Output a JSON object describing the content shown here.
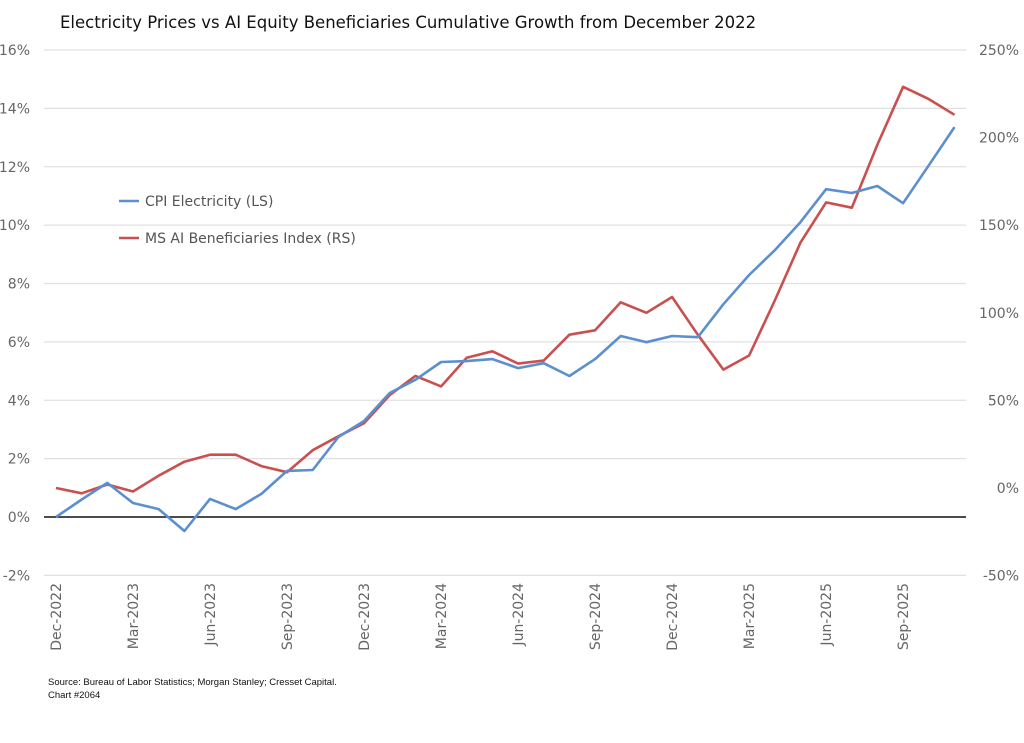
{
  "chart_data": {
    "type": "line",
    "title": "Electricity Prices vs AI Equity Beneficiaries Cumulative Growth from December 2022",
    "x": [
      "Dec-2022",
      "Jan-2023",
      "Feb-2023",
      "Mar-2023",
      "Apr-2023",
      "May-2023",
      "Jun-2023",
      "Jul-2023",
      "Aug-2023",
      "Sep-2023",
      "Oct-2023",
      "Nov-2023",
      "Dec-2023",
      "Jan-2024",
      "Feb-2024",
      "Mar-2024",
      "Apr-2024",
      "May-2024",
      "Jun-2024",
      "Jul-2024",
      "Aug-2024",
      "Sep-2024",
      "Oct-2024",
      "Nov-2024",
      "Dec-2024",
      "Jan-2025",
      "Feb-2025",
      "Mar-2025",
      "Apr-2025",
      "May-2025",
      "Jun-2025",
      "Jul-2025",
      "Aug-2025",
      "Sep-2025",
      "Oct-2025",
      "Nov-2025"
    ],
    "x_tick_labels": [
      "Dec-2022",
      "Mar-2023",
      "Jun-2023",
      "Sep-2023",
      "Dec-2023",
      "Mar-2024",
      "Jun-2024",
      "Sep-2024",
      "Dec-2024",
      "Mar-2025",
      "Jun-2025",
      "Sep-2025"
    ],
    "y_left": {
      "ticks": [
        "-2%",
        "0%",
        "2%",
        "4%",
        "6%",
        "8%",
        "10%",
        "12%",
        "14%",
        "16%"
      ],
      "range": [
        -2,
        16
      ]
    },
    "y_right": {
      "ticks": [
        "-50%",
        "0%",
        "50%",
        "100%",
        "150%",
        "200%",
        "250%"
      ],
      "range": [
        -50,
        250
      ]
    },
    "grid": "horizontal",
    "legend_placement": "upper-left",
    "series": [
      {
        "name": "CPI Electricity (LS)",
        "axis": "left",
        "color": "#5b8fcf",
        "values": [
          0.0,
          0.6,
          1.17,
          0.48,
          0.27,
          -0.48,
          0.62,
          0.27,
          0.79,
          1.58,
          1.61,
          2.74,
          3.29,
          4.25,
          4.7,
          5.31,
          5.34,
          5.41,
          5.1,
          5.27,
          4.83,
          5.41,
          6.2,
          5.99,
          6.2,
          6.16,
          7.29,
          8.29,
          9.14,
          10.1,
          11.23,
          11.1,
          11.34,
          10.75,
          12.05,
          13.36
        ]
      },
      {
        "name": "MS AI Beneficiaries Index (RS)",
        "axis": "right",
        "color": "#c9504f",
        "values": [
          0,
          -3,
          2,
          -2,
          7,
          15,
          19,
          19,
          12.5,
          9,
          21.6,
          29.5,
          37,
          53,
          64,
          58,
          74.4,
          78,
          71,
          72.7,
          87.5,
          90,
          106,
          100,
          109,
          87.5,
          67.6,
          75.6,
          107,
          140,
          163,
          160,
          196,
          229,
          222,
          213
        ]
      }
    ]
  },
  "source": "Source: Bureau of Labor Statistics; Morgan Stanley; Cresset Capital.",
  "chart_number": "Chart #2064"
}
